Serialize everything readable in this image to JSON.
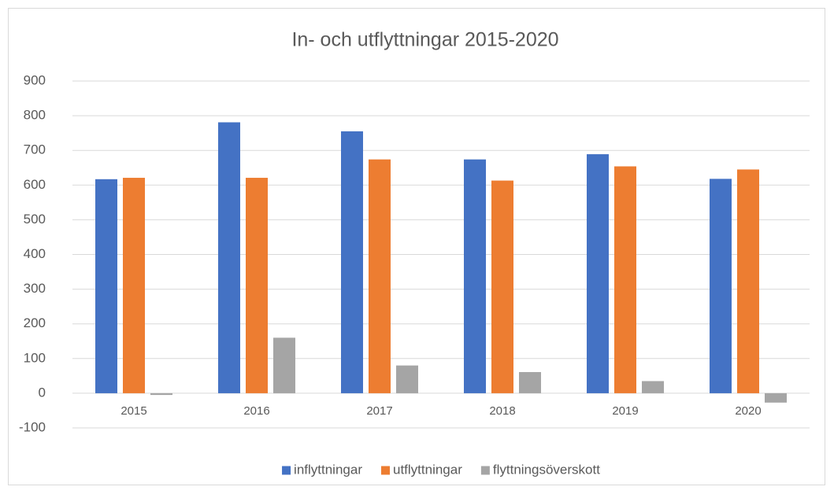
{
  "chart_data": {
    "type": "bar",
    "title": "In- och utflyttningar 2015-2020",
    "categories": [
      "2015",
      "2016",
      "2017",
      "2018",
      "2019",
      "2020"
    ],
    "series": [
      {
        "name": "inflyttningar",
        "color": "#4472c4",
        "values": [
          617,
          781,
          755,
          674,
          689,
          618
        ]
      },
      {
        "name": "utflyttningar",
        "color": "#ed7d31",
        "values": [
          621,
          621,
          674,
          613,
          654,
          645
        ]
      },
      {
        "name": "flyttningsöverskott",
        "color": "#a5a5a5",
        "values": [
          -5,
          160,
          80,
          61,
          35,
          -27
        ]
      }
    ],
    "ylim": [
      -100,
      900
    ],
    "yticks": [
      -100,
      0,
      100,
      200,
      300,
      400,
      500,
      600,
      700,
      800,
      900
    ],
    "grid": true,
    "legend": "bottom"
  }
}
